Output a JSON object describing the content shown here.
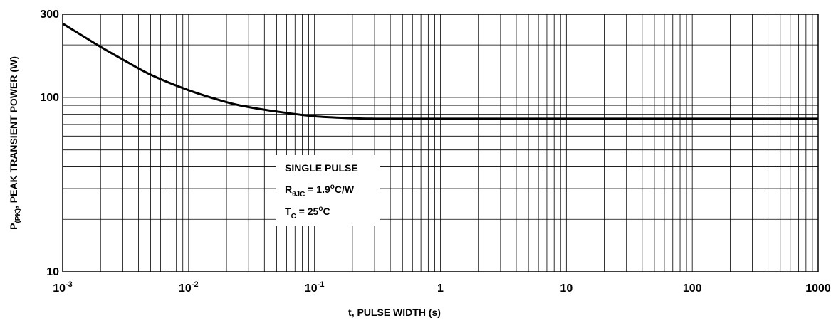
{
  "chart_data": {
    "type": "line",
    "xscale": "log",
    "yscale": "log",
    "xlim": [
      0.001,
      1000
    ],
    "ylim": [
      10,
      300
    ],
    "grid": true,
    "xlabel": "t, PULSE WIDTH (s)",
    "ylabel": {
      "main": "P",
      "sub": "(PK)",
      "rest": ", PEAK TRANSIENT POWER (W)"
    },
    "x_tick_labels": [
      {
        "value": 0.001,
        "base": "10",
        "exp": "-3"
      },
      {
        "value": 0.01,
        "base": "10",
        "exp": "-2"
      },
      {
        "value": 0.1,
        "base": "10",
        "exp": "-1"
      },
      {
        "value": 1,
        "base": "1",
        "exp": ""
      },
      {
        "value": 10,
        "base": "10",
        "exp": ""
      },
      {
        "value": 100,
        "base": "100",
        "exp": ""
      },
      {
        "value": 1000,
        "base": "1000",
        "exp": ""
      }
    ],
    "y_tick_labels": [
      {
        "value": 10,
        "label": "10"
      },
      {
        "value": 100,
        "label": "100"
      },
      {
        "value": 300,
        "label": "300"
      }
    ],
    "annotations": {
      "line1": "SINGLE PULSE",
      "line2_main": "R",
      "line2_sub": "θJC",
      "line2_val": " = 1.9",
      "line2_sup": "o",
      "line2_unit": "C/W",
      "line3_main": "T",
      "line3_sub": "C",
      "line3_val": " = 25",
      "line3_sup": "o",
      "line3_unit": "C"
    },
    "series": [
      {
        "x": [
          0.001,
          0.002,
          0.003,
          0.005,
          0.01,
          0.02,
          0.03,
          0.05,
          0.1,
          0.2,
          0.3,
          0.5,
          1,
          10,
          100,
          1000
        ],
        "y": [
          265,
          195,
          165,
          135,
          110,
          94,
          88,
          83,
          78,
          76,
          75.5,
          75.5,
          75.5,
          75.5,
          75.5,
          75.5
        ]
      }
    ]
  }
}
